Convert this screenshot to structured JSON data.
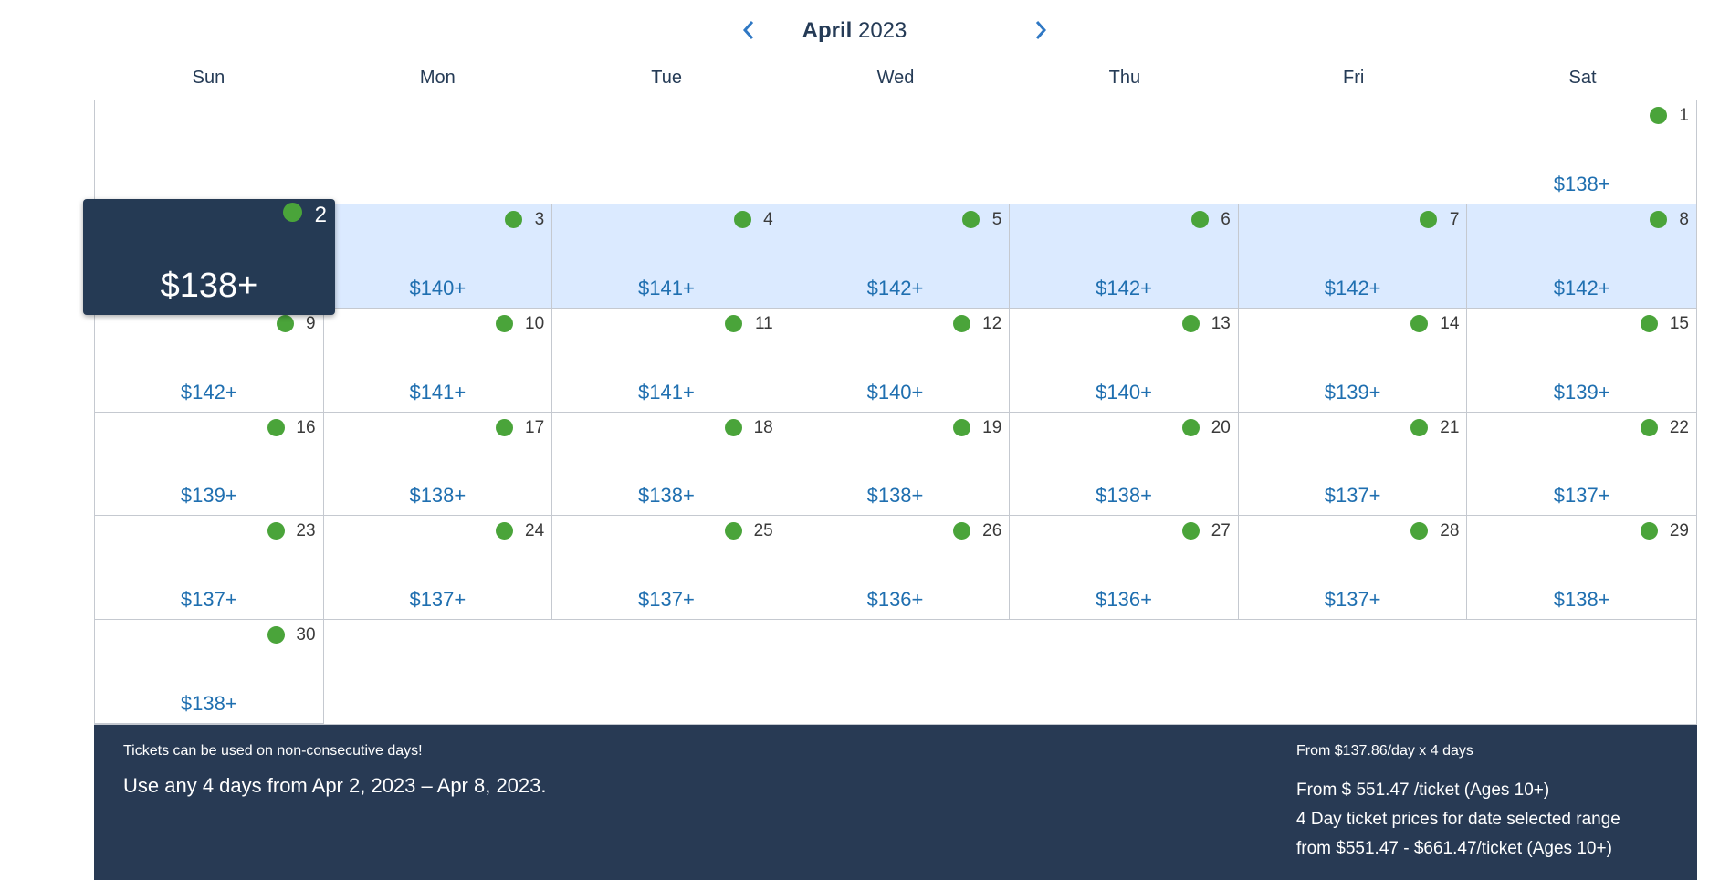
{
  "header": {
    "month": "April",
    "year": "2023"
  },
  "weekdays": [
    "Sun",
    "Mon",
    "Tue",
    "Wed",
    "Thu",
    "Fri",
    "Sat"
  ],
  "colors": {
    "available": "#4aa43a",
    "price": "#1f6fb0",
    "range": "#dbeaff",
    "dark": "#253a54"
  },
  "selected": {
    "day": "2",
    "price": "$138+"
  },
  "prices": {
    "1": "$138+",
    "2": "$138+",
    "3": "$140+",
    "4": "$141+",
    "5": "$142+",
    "6": "$142+",
    "7": "$142+",
    "8": "$142+",
    "9": "$142+",
    "10": "$141+",
    "11": "$141+",
    "12": "$140+",
    "13": "$140+",
    "14": "$139+",
    "15": "$139+",
    "16": "$139+",
    "17": "$138+",
    "18": "$138+",
    "19": "$138+",
    "20": "$138+",
    "21": "$137+",
    "22": "$137+",
    "23": "$137+",
    "24": "$137+",
    "25": "$137+",
    "26": "$136+",
    "27": "$136+",
    "28": "$137+",
    "29": "$138+",
    "30": "$138+"
  },
  "footer": {
    "note": "Tickets can be used on non-consecutive days!",
    "range": "Use any 4 days from Apr 2, 2023 – Apr 8, 2023.",
    "per_day": "From $137.86/day x 4 days",
    "per_ticket": "From $ 551.47 /ticket (Ages 10+)",
    "range_label": "4 Day ticket prices for date selected range",
    "range_prices": "from $551.47 - $661.47/ticket (Ages 10+)"
  }
}
